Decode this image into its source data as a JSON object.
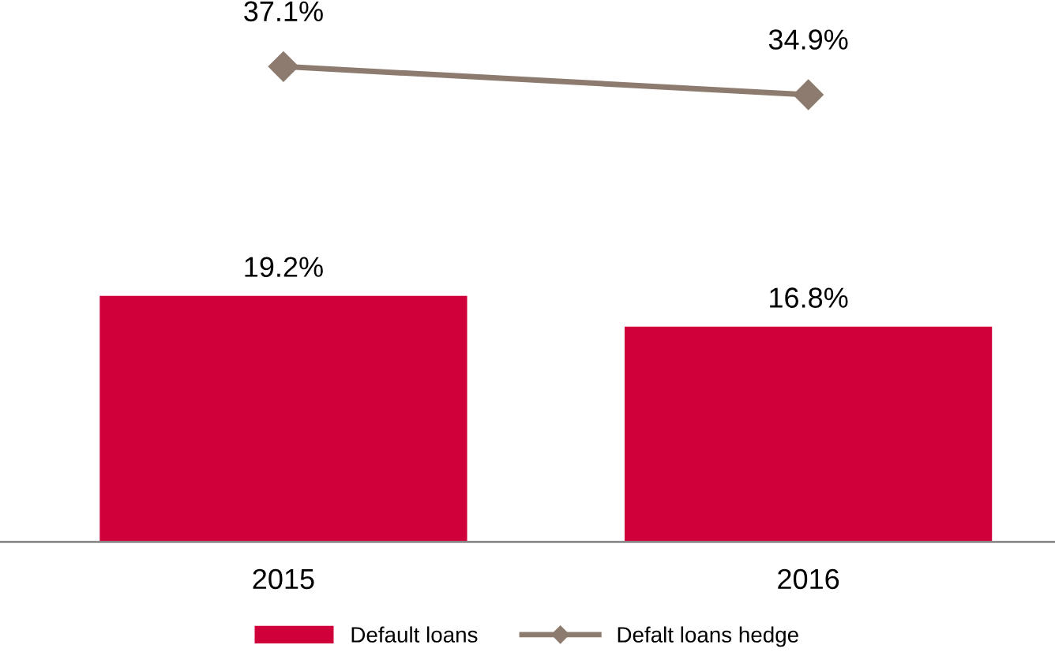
{
  "chart_data": {
    "type": "bar",
    "categories": [
      "2015",
      "2016"
    ],
    "series": [
      {
        "name": "Default loans",
        "color": "#d0003a",
        "values": [
          19.2,
          16.8
        ],
        "value_labels": [
          "19.2%",
          "16.8%"
        ]
      },
      {
        "name": "Defalt loans hedge",
        "type": "line",
        "color": "#8c7b6e",
        "values": [
          37.1,
          34.9
        ],
        "value_labels": [
          "37.1%",
          "34.9%"
        ]
      }
    ],
    "tick_labels": "x",
    "legend": "bottom",
    "marker": "diamond",
    "line_style": "solid"
  }
}
